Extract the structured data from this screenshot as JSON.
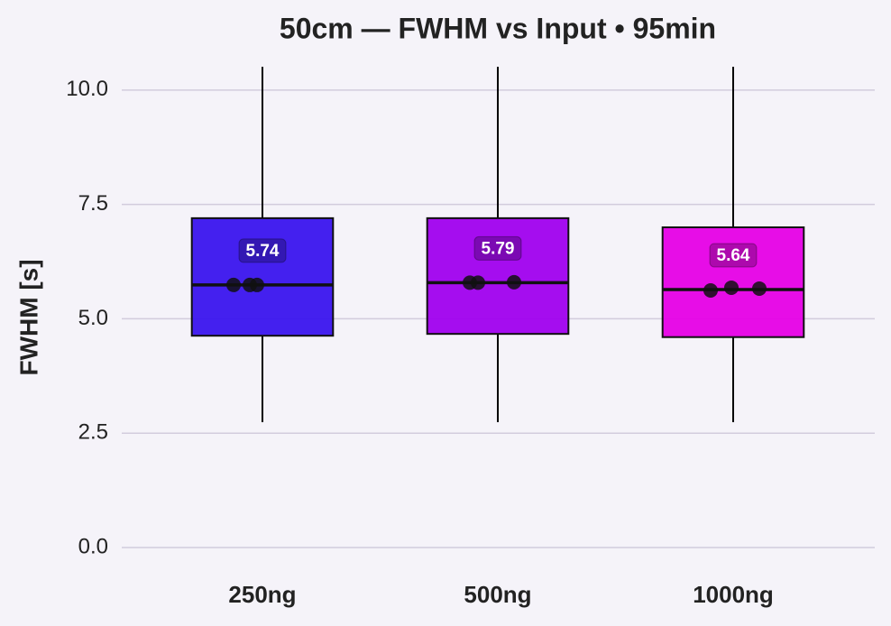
{
  "chart_data": {
    "type": "box",
    "title": "50cm — FWHM vs Input • 95min",
    "y_label": "FWHM [s]",
    "categories": [
      "250ng",
      "500ng",
      "1000ng"
    ],
    "series": [
      {
        "name": "250ng",
        "color": "#3a14ee",
        "whisker_low": 2.74,
        "q1": 4.63,
        "median": 5.74,
        "q3": 7.2,
        "whisker_high": 10.51,
        "points": [
          5.74,
          5.74,
          5.74
        ]
      },
      {
        "name": "500ng",
        "color": "#a000ee",
        "whisker_low": 2.74,
        "q1": 4.67,
        "median": 5.79,
        "q3": 7.2,
        "whisker_high": 10.51,
        "points": [
          5.79,
          5.79,
          5.8
        ]
      },
      {
        "name": "1000ng",
        "color": "#e600e6",
        "whisker_low": 2.74,
        "q1": 4.6,
        "median": 5.64,
        "q3": 7.0,
        "whisker_high": 10.51,
        "points": [
          5.62,
          5.68,
          5.66
        ]
      }
    ],
    "ylim": [
      -0.45,
      10.55
    ],
    "yticks": [
      {
        "value": 0,
        "label": "0.0"
      },
      2.5,
      {
        "value": 5,
        "label": "5.0"
      },
      7.5,
      {
        "value": 10,
        "label": "10.0"
      }
    ],
    "grid": true
  }
}
